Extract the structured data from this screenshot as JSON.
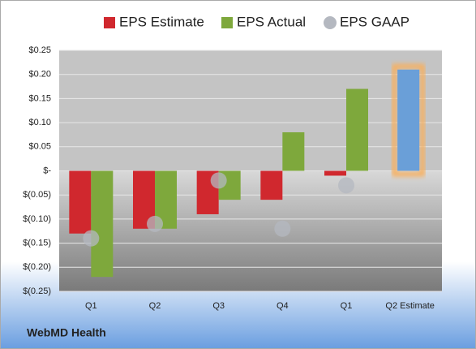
{
  "chart_data": {
    "type": "bar",
    "categories": [
      "Q1",
      "Q2",
      "Q3",
      "Q4",
      "Q1",
      "Q2 Estimate"
    ],
    "series": [
      {
        "name": "EPS Estimate",
        "color": "#d0282e",
        "values": [
          -0.13,
          -0.12,
          -0.09,
          -0.06,
          -0.01,
          0.21
        ]
      },
      {
        "name": "EPS Actual",
        "color": "#7ea83c",
        "values": [
          -0.22,
          -0.12,
          -0.06,
          0.08,
          0.17,
          null
        ]
      },
      {
        "name": "EPS GAAP",
        "color": "#b4b8c0",
        "marker": "circle",
        "values": [
          -0.14,
          -0.11,
          -0.02,
          -0.12,
          -0.03,
          null
        ]
      }
    ],
    "highlight": {
      "color": "#6a9fd8",
      "glow": "#f7b060"
    },
    "ylim": [
      -0.25,
      0.25
    ],
    "yticks": [
      {
        "value": 0.25,
        "label": "$0.25"
      },
      {
        "value": 0.2,
        "label": "$0.20"
      },
      {
        "value": 0.15,
        "label": "$0.15"
      },
      {
        "value": 0.1,
        "label": "$0.10"
      },
      {
        "value": 0.05,
        "label": "$0.05"
      },
      {
        "value": 0,
        "label": "$-"
      },
      {
        "value": -0.05,
        "label": "$(0.05)"
      },
      {
        "value": -0.1,
        "label": "$(0.10)"
      },
      {
        "value": -0.15,
        "label": "$(0.15)"
      },
      {
        "value": -0.2,
        "label": "$(0.20)"
      },
      {
        "value": -0.25,
        "label": "$(0.25)"
      }
    ],
    "grid": true,
    "legend": "top",
    "source": "WebMD Health"
  }
}
